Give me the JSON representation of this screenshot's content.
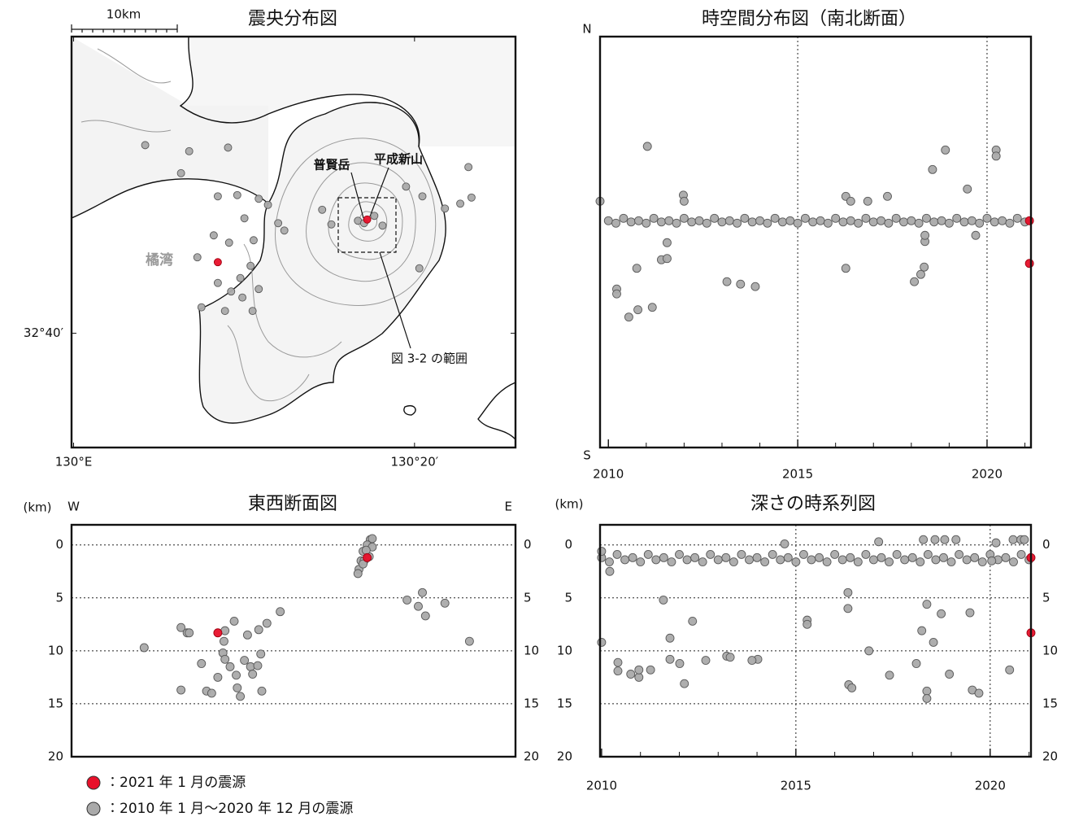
{
  "chart_data": [
    {
      "type": "map",
      "title": "震央分布図",
      "scale_label": "10km",
      "annotations": [
        "普賢岳",
        "平成新山",
        "橘湾",
        "図 3-2 の範囲"
      ],
      "xlim": [
        129.998,
        130.432
      ],
      "ylim": [
        32.573,
        32.91
      ],
      "xticks": [
        {
          "value": 130.0,
          "label": "130°E"
        },
        {
          "value": 130.3333,
          "label": "130°20′"
        }
      ],
      "yticks": [
        {
          "value": 32.6667,
          "label": "32°40′"
        }
      ],
      "series": [
        {
          "color": "#aaaaaa",
          "x": [
            130.07,
            130.113,
            130.151,
            130.105,
            130.141,
            130.16,
            130.181,
            130.19,
            130.167,
            130.2,
            130.137,
            130.152,
            130.176,
            130.121,
            130.141,
            130.163,
            130.173,
            130.154,
            130.181,
            130.125,
            130.165,
            130.175,
            130.148,
            130.206,
            130.243,
            130.252,
            130.278,
            130.284,
            130.294,
            130.302,
            130.325,
            130.341,
            130.386,
            130.378,
            130.338,
            130.363,
            130.389
          ],
          "values": [
            32.821,
            32.816,
            32.819,
            32.798,
            32.779,
            32.78,
            32.777,
            32.772,
            32.761,
            32.757,
            32.747,
            32.741,
            32.743,
            32.729,
            32.708,
            32.712,
            32.722,
            32.701,
            32.703,
            32.688,
            32.696,
            32.685,
            32.685,
            32.751,
            32.768,
            32.756,
            32.759,
            32.757,
            32.763,
            32.755,
            32.787,
            32.779,
            32.803,
            32.773,
            32.72,
            32.769,
            32.778
          ]
        },
        {
          "color": "#e8102a",
          "x": [
            130.287,
            130.141
          ],
          "values": [
            32.76,
            32.725
          ]
        }
      ]
    },
    {
      "type": "scatter",
      "title": "時空間分布図（南北断面）",
      "xlim": [
        2009.78,
        2021.16
      ],
      "ylim": [
        32.573,
        32.91
      ],
      "xticks": [
        2010,
        2015,
        2020
      ],
      "xminorticks": [
        2010,
        2011,
        2012,
        2013,
        2014,
        2015,
        2016,
        2017,
        2018,
        2019,
        2020,
        2021
      ],
      "xgridlines": [
        2015,
        2020
      ],
      "yticks": [
        {
          "value": 32.91,
          "label": "N"
        },
        {
          "value": 32.573,
          "label": "S"
        }
      ],
      "series": [
        {
          "color": "#aaaaaa",
          "x": [
            2010,
            2010.2,
            2010.4,
            2010.6,
            2010.8,
            2011,
            2011.2,
            2011.4,
            2011.6,
            2011.8,
            2012,
            2012.2,
            2012.4,
            2012.6,
            2012.8,
            2013,
            2013.2,
            2013.4,
            2013.6,
            2013.8,
            2014,
            2014.2,
            2014.4,
            2014.6,
            2014.8,
            2015,
            2015.2,
            2015.4,
            2015.6,
            2015.8,
            2016,
            2016.2,
            2016.4,
            2016.6,
            2016.8,
            2017,
            2017.2,
            2017.4,
            2017.6,
            2017.8,
            2018,
            2018.2,
            2018.4,
            2018.6,
            2018.8,
            2019,
            2019.2,
            2019.4,
            2019.6,
            2019.8,
            2020,
            2020.2,
            2020.4,
            2020.6,
            2020.8,
            2021,
            2009.78,
            2011.03,
            2010.22,
            2010.22,
            2010.54,
            2010.78,
            2011.16,
            2010.75,
            2011.4,
            2011.55,
            2011.55,
            2011.98,
            2012.0,
            2013.13,
            2013.49,
            2013.88,
            2016.27,
            2016.27,
            2016.4,
            2016.85,
            2017.37,
            2018.08,
            2018.25,
            2018.34,
            2018.36,
            2018.36,
            2018.56,
            2018.9,
            2019.48,
            2019.7,
            2020.24,
            2020.24
          ],
          "values": [
            32.759,
            32.757,
            32.761,
            32.758,
            32.759,
            32.757,
            32.761,
            32.758,
            32.759,
            32.757,
            32.761,
            32.758,
            32.759,
            32.757,
            32.761,
            32.758,
            32.759,
            32.757,
            32.761,
            32.758,
            32.759,
            32.757,
            32.761,
            32.758,
            32.759,
            32.757,
            32.761,
            32.758,
            32.759,
            32.757,
            32.761,
            32.758,
            32.759,
            32.757,
            32.761,
            32.758,
            32.759,
            32.757,
            32.761,
            32.758,
            32.759,
            32.757,
            32.761,
            32.758,
            32.759,
            32.757,
            32.761,
            32.758,
            32.759,
            32.757,
            32.761,
            32.758,
            32.759,
            32.757,
            32.761,
            32.758,
            32.775,
            32.82,
            32.703,
            32.699,
            32.68,
            32.686,
            32.688,
            32.72,
            32.727,
            32.741,
            32.728,
            32.78,
            32.775,
            32.709,
            32.707,
            32.705,
            32.779,
            32.72,
            32.775,
            32.775,
            32.779,
            32.709,
            32.715,
            32.721,
            32.742,
            32.747,
            32.801,
            32.817,
            32.785,
            32.747,
            32.817,
            32.812
          ]
        },
        {
          "color": "#e8102a",
          "x": [
            2021.12,
            2021.12
          ],
          "values": [
            32.759,
            32.724
          ]
        }
      ]
    },
    {
      "type": "scatter",
      "title": "東西断面図",
      "y_label": "(km)",
      "xlim": [
        129.998,
        130.432
      ],
      "ylim": [
        20,
        -1.9
      ],
      "xticks": [
        {
          "value": 130.0,
          "label": "W"
        },
        {
          "value": 130.425,
          "label": "E"
        }
      ],
      "yticks": [
        0,
        5,
        10,
        15,
        20
      ],
      "y2lim": [
        20,
        -1.9
      ],
      "y2ticks": [
        0,
        5,
        10,
        15,
        20
      ],
      "ygridlines": [
        0,
        5,
        10,
        15
      ],
      "series": [
        {
          "name": "：2010 年 1 月～2020 年 12 月の震源",
          "color": "#aaaaaa",
          "x": [
            130.069,
            130.105,
            130.111,
            130.113,
            130.105,
            130.125,
            130.13,
            130.135,
            130.147,
            130.148,
            130.157,
            130.146,
            130.148,
            130.153,
            130.141,
            130.159,
            130.16,
            130.163,
            130.167,
            130.173,
            130.175,
            130.18,
            130.183,
            130.181,
            130.189,
            130.202,
            130.184,
            130.17,
            130.326,
            130.337,
            130.341,
            130.344,
            130.363,
            130.387,
            130.29,
            130.292,
            130.287,
            130.283,
            130.281,
            130.279,
            130.284,
            130.289,
            130.292,
            130.286,
            130.283,
            130.278
          ],
          "values": [
            9.7,
            7.8,
            8.3,
            8.3,
            13.7,
            11.2,
            13.8,
            14.0,
            9.1,
            8.1,
            7.2,
            10.2,
            10.8,
            11.5,
            12.5,
            12.3,
            13.5,
            14.3,
            10.9,
            11.5,
            12.2,
            11.4,
            10.3,
            8.0,
            7.4,
            6.3,
            13.8,
            8.5,
            5.2,
            5.8,
            4.5,
            6.7,
            5.5,
            9.1,
            -0.5,
            -0.6,
            0.0,
            0.6,
            1.5,
            2.3,
            1.5,
            1.1,
            0.2,
            0.5,
            1.8,
            2.7
          ]
        },
        {
          "name": "：2021 年 1 月の震源",
          "color": "#e8102a",
          "x": [
            130.287,
            130.141
          ],
          "values": [
            1.2,
            8.3
          ]
        }
      ]
    },
    {
      "type": "scatter",
      "title": "深さの時系列図",
      "y_label": "(km)",
      "xlim": [
        2009.96,
        2021.05
      ],
      "ylim": [
        20,
        -1.9
      ],
      "xticks": [
        2010,
        2015,
        2020
      ],
      "xminorticks": [
        2010,
        2011,
        2012,
        2013,
        2014,
        2015,
        2016,
        2017,
        2018,
        2019,
        2020,
        2021
      ],
      "xgridlines": [
        2015,
        2020
      ],
      "yticks": [
        0,
        5,
        10,
        15,
        20
      ],
      "y2lim": [
        20,
        -1.9
      ],
      "y2ticks": [
        0,
        5,
        10,
        15,
        20
      ],
      "ygridlines": [
        0,
        5,
        10,
        15
      ],
      "series": [
        {
          "color": "#aaaaaa",
          "x": [
            2010,
            2010.2,
            2010.4,
            2010.6,
            2010.8,
            2011,
            2011.2,
            2011.4,
            2011.6,
            2011.8,
            2012,
            2012.2,
            2012.4,
            2012.6,
            2012.8,
            2013,
            2013.2,
            2013.4,
            2013.6,
            2013.8,
            2014,
            2014.2,
            2014.4,
            2014.6,
            2014.8,
            2015,
            2015.2,
            2015.4,
            2015.6,
            2015.8,
            2016,
            2016.2,
            2016.4,
            2016.6,
            2016.8,
            2017,
            2017.2,
            2017.4,
            2017.6,
            2017.8,
            2018,
            2018.2,
            2018.4,
            2018.6,
            2018.8,
            2019,
            2019.2,
            2019.4,
            2019.6,
            2019.8,
            2020,
            2020.2,
            2020.4,
            2020.6,
            2020.8,
            2021,
            2010.0,
            2010.0,
            2010.21,
            2010.42,
            2010.42,
            2010.75,
            2010.96,
            2010.96,
            2011.26,
            2011.59,
            2011.76,
            2011.76,
            2012.01,
            2012.13,
            2012.34,
            2012.68,
            2013.22,
            2013.31,
            2014.02,
            2013.87,
            2014.71,
            2015.29,
            2015.29,
            2016.34,
            2016.34,
            2016.36,
            2016.44,
            2016.88,
            2017.13,
            2017.41,
            2018.1,
            2018.24,
            2018.37,
            2018.37,
            2018.37,
            2018.54,
            2018.28,
            2018.58,
            2018.83,
            2019.12,
            2018.74,
            2018.95,
            2019.48,
            2019.54,
            2019.71,
            2020.04,
            2020.15,
            2020.5,
            2020.59,
            2020.79,
            2020.88
          ],
          "values": [
            1.2,
            1.6,
            0.9,
            1.4,
            1.2,
            1.6,
            0.9,
            1.4,
            1.2,
            1.6,
            0.9,
            1.4,
            1.2,
            1.6,
            0.9,
            1.4,
            1.2,
            1.6,
            0.9,
            1.4,
            1.2,
            1.6,
            0.9,
            1.4,
            1.2,
            1.6,
            0.9,
            1.4,
            1.2,
            1.6,
            0.9,
            1.4,
            1.2,
            1.6,
            0.9,
            1.4,
            1.2,
            1.6,
            0.9,
            1.4,
            1.2,
            1.6,
            0.9,
            1.4,
            1.2,
            1.6,
            0.9,
            1.4,
            1.2,
            1.6,
            0.9,
            1.4,
            1.2,
            1.6,
            0.9,
            1.4,
            0.6,
            9.2,
            2.5,
            11.1,
            11.9,
            12.2,
            12.5,
            11.8,
            11.8,
            5.2,
            8.8,
            10.8,
            11.2,
            13.1,
            7.2,
            10.9,
            10.5,
            10.6,
            10.8,
            10.9,
            -0.1,
            7.1,
            7.5,
            4.5,
            6.0,
            13.2,
            13.5,
            10.0,
            -0.3,
            12.3,
            11.2,
            8.1,
            5.6,
            13.8,
            14.5,
            9.2,
            -0.5,
            -0.5,
            -0.5,
            -0.5,
            6.5,
            12.2,
            6.4,
            13.7,
            14.0,
            1.5,
            -0.2,
            11.8,
            -0.5,
            -0.5,
            -0.5
          ]
        },
        {
          "color": "#e8102a",
          "x": [
            2021.05,
            2021.05
          ],
          "values": [
            1.2,
            8.3
          ]
        }
      ]
    }
  ]
}
